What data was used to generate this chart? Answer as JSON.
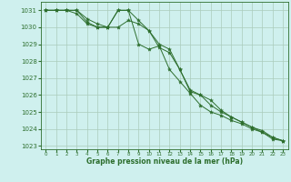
{
  "title": "Graphe pression niveau de la mer (hPa)",
  "bg_color": "#cff0ee",
  "grid_color": "#aaccbb",
  "line_color": "#2d6e2d",
  "xlim": [
    -0.5,
    23.5
  ],
  "ylim": [
    1022.8,
    1031.5
  ],
  "yticks": [
    1023,
    1024,
    1025,
    1026,
    1027,
    1028,
    1029,
    1030,
    1031
  ],
  "xticks": [
    0,
    1,
    2,
    3,
    4,
    5,
    6,
    7,
    8,
    9,
    10,
    11,
    12,
    13,
    14,
    15,
    16,
    17,
    18,
    19,
    20,
    21,
    22,
    23
  ],
  "series1": [
    1031.0,
    1031.0,
    1031.0,
    1031.0,
    1030.5,
    1030.2,
    1030.0,
    1031.0,
    1031.0,
    1030.4,
    1029.8,
    1028.8,
    1028.5,
    1027.5,
    1026.3,
    1026.0,
    1025.7,
    1025.1,
    1024.7,
    1024.4,
    1024.1,
    1023.8,
    1023.4,
    1023.3
  ],
  "series2": [
    1031.0,
    1031.0,
    1031.0,
    1030.8,
    1030.2,
    1030.0,
    1030.0,
    1030.0,
    1030.4,
    1030.2,
    1029.8,
    1029.0,
    1028.7,
    1027.5,
    1026.2,
    1026.0,
    1025.4,
    1025.0,
    1024.7,
    1024.4,
    1024.1,
    1023.9,
    1023.5,
    1023.3
  ],
  "series3": [
    1031.0,
    1031.0,
    1031.0,
    1031.0,
    1030.3,
    1030.0,
    1030.0,
    1031.0,
    1031.0,
    1029.0,
    1028.7,
    1028.9,
    1027.5,
    1026.8,
    1026.1,
    1025.4,
    1025.0,
    1024.8,
    1024.5,
    1024.3,
    1024.0,
    1023.8,
    1023.5,
    1023.3
  ]
}
